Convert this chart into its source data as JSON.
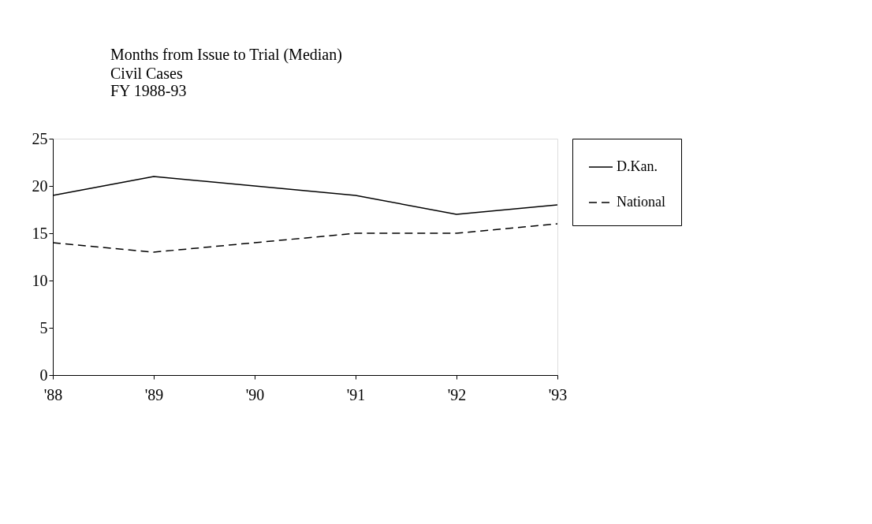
{
  "chart_data": {
    "type": "line",
    "title": "Months from Issue to Trial (Median)",
    "subtitle": "Civil Cases\nFY 1988-93",
    "categories": [
      "'88",
      "'89",
      "'90",
      "'91",
      "'92",
      "'93"
    ],
    "series": [
      {
        "name": "D.Kan.",
        "color": "#000000",
        "line_style": "solid",
        "values": [
          19,
          21,
          20,
          19,
          17,
          18
        ]
      },
      {
        "name": "National",
        "color": "#000000",
        "line_style": "dashed",
        "values": [
          14,
          13,
          14,
          15,
          15,
          16
        ]
      }
    ],
    "ylim": [
      0,
      25
    ],
    "yticks": [
      0,
      5,
      10,
      15,
      20,
      25
    ],
    "grid": false,
    "legend": "right",
    "marker": "none"
  }
}
